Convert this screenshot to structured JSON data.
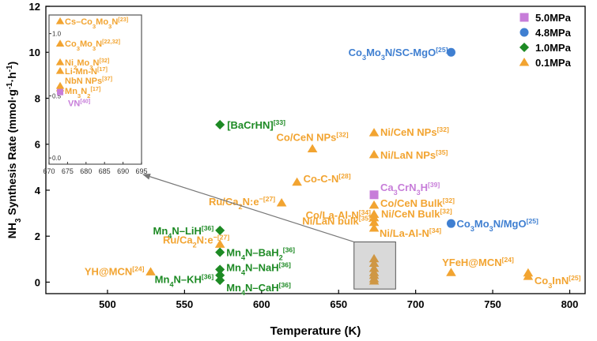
{
  "chart_data": {
    "type": "scatter",
    "xlabel": "Temperature (K)",
    "ylabel": "NH3 Synthesis Rate (mmol·g-1·h-1)",
    "xlim": [
      460,
      810
    ],
    "ylim": [
      -0.5,
      12
    ],
    "xticks": [
      "500",
      "550",
      "600",
      "650",
      "700",
      "750",
      "800"
    ],
    "yticks": [
      "0",
      "2",
      "4",
      "6",
      "8",
      "10",
      "12"
    ],
    "legend": {
      "position": "top-right",
      "entries": [
        {
          "label": "5.0MPa",
          "color": "#c77dd9",
          "marker": "square"
        },
        {
          "label": "4.8MPa",
          "color": "#3f7fd1",
          "marker": "circle"
        },
        {
          "label": "1.0MPa",
          "color": "#1d8a24",
          "marker": "diamond"
        },
        {
          "label": "0.1MPa",
          "color": "#f2a431",
          "marker": "triangle"
        }
      ]
    },
    "series": [
      {
        "name": "5.0MPa",
        "color": "#c77dd9",
        "marker": "square",
        "points": [
          {
            "x": 673,
            "y": 3.8,
            "label": "Ca3CrN3H[39]"
          }
        ]
      },
      {
        "name": "4.8MPa",
        "color": "#3f7fd1",
        "marker": "circle",
        "points": [
          {
            "x": 723,
            "y": 10.0,
            "label": "Co3Mo3N/SC-MgO[25]"
          },
          {
            "x": 723,
            "y": 2.55,
            "label": "Co3Mo3N/MgO[25]"
          }
        ]
      },
      {
        "name": "1.0MPa",
        "color": "#1d8a24",
        "marker": "diamond",
        "points": [
          {
            "x": 573,
            "y": 6.85,
            "label": "[BaCrHN][33]"
          },
          {
            "x": 573,
            "y": 2.25,
            "label": "Mn4N–LiH[36]"
          },
          {
            "x": 573,
            "y": 1.3,
            "label": "Mn4N–BaH2[36]"
          },
          {
            "x": 573,
            "y": 0.55,
            "label": "Mn4N–NaH[36]"
          },
          {
            "x": 573,
            "y": 0.3,
            "label": "Mn4N–KH[36]"
          },
          {
            "x": 573,
            "y": 0.08,
            "label": "Mn4N–CaH[36]"
          }
        ]
      },
      {
        "name": "0.1MPa",
        "color": "#f2a431",
        "marker": "triangle",
        "points": [
          {
            "x": 673,
            "y": 6.5,
            "label": "Ni/CeN NPs[32]"
          },
          {
            "x": 633,
            "y": 5.8,
            "label": "Co/CeN NPs[32]"
          },
          {
            "x": 673,
            "y": 5.55,
            "label": "Ni/LaN NPs[35]"
          },
          {
            "x": 623,
            "y": 4.35,
            "label": "Co-C-N[28]"
          },
          {
            "x": 613,
            "y": 3.45,
            "label": "Ru/Ca2N:e-[27]"
          },
          {
            "x": 673,
            "y": 3.35,
            "label": "Co/CeN Bulk[32]"
          },
          {
            "x": 673,
            "y": 2.95,
            "label": "Ni/CeN Bulk[32]"
          },
          {
            "x": 673,
            "y": 2.8,
            "label": "Co/La-Al-N[34]"
          },
          {
            "x": 673,
            "y": 2.6,
            "label": "Ni/LaN bulk[35]"
          },
          {
            "x": 673,
            "y": 2.35,
            "label": "Ni/La-Al-N[34]"
          },
          {
            "x": 573,
            "y": 1.65,
            "label": "Ru/Ca2N:e-[27]"
          },
          {
            "x": 528,
            "y": 0.45,
            "label": "YH@MCN[24]"
          },
          {
            "x": 723,
            "y": 0.42,
            "label": "YFeH@MCN[24]"
          },
          {
            "x": 773,
            "y": 0.4,
            "label": "Co3InN[25]"
          },
          {
            "x": 773,
            "y": 0.25,
            "label": ""
          },
          {
            "x": 673,
            "y": 1.02,
            "label": ""
          },
          {
            "x": 673,
            "y": 0.82,
            "label": ""
          },
          {
            "x": 673,
            "y": 0.6,
            "label": ""
          },
          {
            "x": 673,
            "y": 0.42,
            "label": ""
          },
          {
            "x": 673,
            "y": 0.3,
            "label": ""
          },
          {
            "x": 673,
            "y": 0.15,
            "label": ""
          },
          {
            "x": 673,
            "y": 0.05,
            "label": ""
          }
        ]
      }
    ],
    "inset": {
      "xlim": [
        670,
        695
      ],
      "ylim": [
        -0.05,
        1.15
      ],
      "xticks": [
        "670",
        "675",
        "680",
        "685",
        "690",
        "695"
      ],
      "yticks": [
        "0.0",
        "0.5",
        "1.0"
      ],
      "points": [
        {
          "x": 673,
          "y": 1.1,
          "label": "Cs–Co3Mo3N[23]",
          "marker": "triangle",
          "color": "#f2a431"
        },
        {
          "x": 673,
          "y": 0.92,
          "label": "Co3Mo3N[22,32]",
          "marker": "triangle",
          "color": "#f2a431"
        },
        {
          "x": 673,
          "y": 0.77,
          "label": "Ni2Mo3N[32]",
          "marker": "triangle",
          "color": "#f2a431"
        },
        {
          "x": 673,
          "y": 0.7,
          "label": "Li-Mn-N[17]",
          "marker": "triangle",
          "color": "#f2a431"
        },
        {
          "x": 673,
          "y": 0.58,
          "label": "NbN NPs[37]",
          "marker": "triangle",
          "color": "#f2a431"
        },
        {
          "x": 673,
          "y": 0.56,
          "label": "Mn3N2[17]",
          "marker": "triangle",
          "color": "#f2a431"
        },
        {
          "x": 673,
          "y": 0.53,
          "label": "VN[40]",
          "marker": "square",
          "color": "#c77dd9"
        }
      ]
    }
  }
}
